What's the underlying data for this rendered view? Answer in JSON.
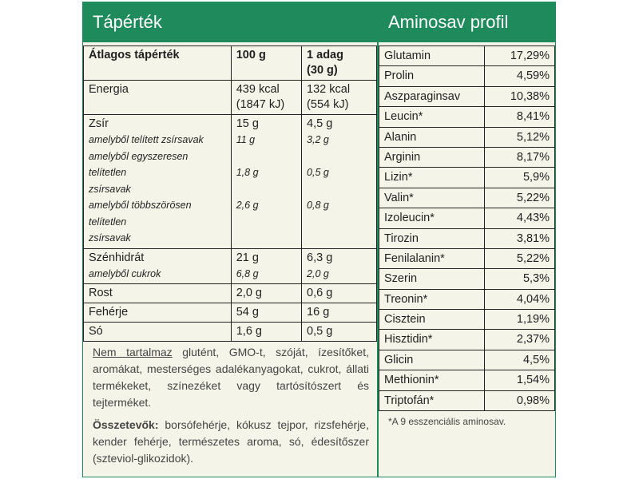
{
  "left": {
    "title": "Tápérték",
    "header": {
      "c1": "Átlagos tápérték",
      "c2": "100 g",
      "c3a": "1 adag",
      "c3b": "(30 g)"
    },
    "energy": {
      "label": "Energia",
      "v1a": "439 kcal",
      "v1b": "(1847 kJ)",
      "v2a": "132 kcal",
      "v2b": "(554 kJ)"
    },
    "fat": {
      "label": "Zsír",
      "v1": "15 g",
      "v2": "4,5 g",
      "sat_label": "amelyből telített zsírsavak",
      "sat_v1": "11 g",
      "sat_v2": "3,2 g",
      "mono_label_a": "amelyből egyszeresen telítetlen",
      "mono_label_b": "zsírsavak",
      "mono_v1": "1,8 g",
      "mono_v2": "0,5 g",
      "poly_label_a": "amelyből többszörösen telítetlen",
      "poly_label_b": "zsírsavak",
      "poly_v1": "2,6 g",
      "poly_v2": "0,8 g"
    },
    "carbs": {
      "label": "Szénhidrát",
      "v1": "21 g",
      "v2": "6,3 g",
      "sugar_label": "amelyből cukrok",
      "sugar_v1": "6,8 g",
      "sugar_v2": "2,0 g"
    },
    "fiber": {
      "label": "Rost",
      "v1": "2,0 g",
      "v2": "0,6 g"
    },
    "protein": {
      "label": "Fehérje",
      "v1": "54 g",
      "v2": "16 g"
    },
    "salt": {
      "label": "Só",
      "v1": "1,6 g",
      "v2": "0,5 g"
    },
    "free_from_label": "Nem tartalmaz",
    "free_from_text": " glutént, GMO-t, szóját, ízesítőket, aromákat, mesterséges adalékanyagokat, cukrot, állati termékeket, színezéket vagy tartósítószert és tejterméket.",
    "ingredients_label": "Összetevők:",
    "ingredients_text": " borsófehérje, kókusz tejpor, rizsfehérje, kender fehérje, természetes aroma, só, édesítőszer (szteviol-glikozidok)."
  },
  "right": {
    "title": "Aminosav profil",
    "rows": [
      {
        "name": "Glutamin",
        "value": "17,29%"
      },
      {
        "name": "Prolin",
        "value": "4,59%"
      },
      {
        "name": "Aszparaginsav",
        "value": "10,38%"
      },
      {
        "name": "Leucin*",
        "value": "8,41%"
      },
      {
        "name": "Alanin",
        "value": "5,12%"
      },
      {
        "name": "Arginin",
        "value": "8,17%"
      },
      {
        "name": "Lizin*",
        "value": "5,9%"
      },
      {
        "name": "Valin*",
        "value": "5,22%"
      },
      {
        "name": "Izoleucin*",
        "value": "4,43%"
      },
      {
        "name": "Tirozin",
        "value": "3,81%"
      },
      {
        "name": "Fenilalanin*",
        "value": "5,22%"
      },
      {
        "name": "Szerin",
        "value": "5,3%"
      },
      {
        "name": "Treonin*",
        "value": "4,04%"
      },
      {
        "name": "Cisztein",
        "value": "1,19%"
      },
      {
        "name": "Hisztidin*",
        "value": "2,37%"
      },
      {
        "name": "Glicin",
        "value": "4,5%"
      },
      {
        "name": "Methionin*",
        "value": "1,54%"
      },
      {
        "name": "Triptofán*",
        "value": "0,98%"
      }
    ],
    "footnote": "*A 9 esszenciális aminosav."
  },
  "colors": {
    "header_green": "#1f8a5b",
    "panel_bg": "#f4f4e9"
  }
}
